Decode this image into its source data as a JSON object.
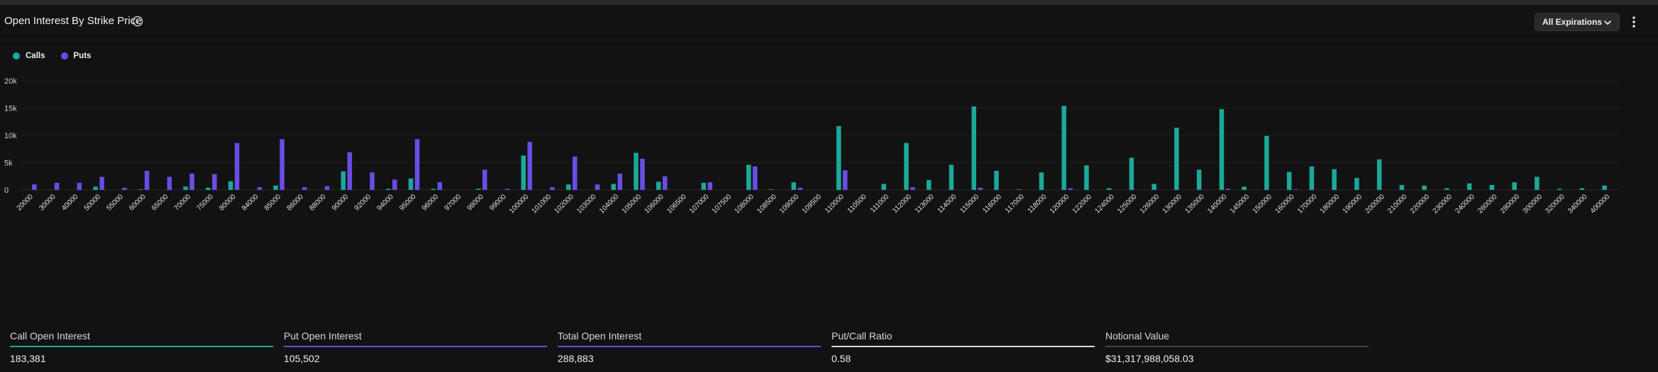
{
  "header": {
    "title": "Open Interest By Strike Price",
    "expirations_label": "All Expirations",
    "info_icon": "info-icon",
    "chevron_icon": "chevron-down-icon",
    "menu_icon": "kebab-menu-icon"
  },
  "legend": [
    {
      "name": "Calls",
      "color": "#1aa99a"
    },
    {
      "name": "Puts",
      "color": "#6a4de6"
    }
  ],
  "chart_data": {
    "type": "bar",
    "title": "Open Interest By Strike Price",
    "ylim": [
      0,
      20000
    ],
    "yticks": [
      0,
      5000,
      10000,
      15000,
      20000
    ],
    "ytick_labels": [
      "0",
      "5k",
      "10k",
      "15k",
      "20k"
    ],
    "legend_position": "top-left",
    "grid": true,
    "categories": [
      "20000",
      "30000",
      "40000",
      "50000",
      "55000",
      "60000",
      "65000",
      "70000",
      "75000",
      "80000",
      "84000",
      "85000",
      "86000",
      "88000",
      "90000",
      "92000",
      "94000",
      "95000",
      "96000",
      "97000",
      "98000",
      "99000",
      "100000",
      "101000",
      "102000",
      "103000",
      "104000",
      "105000",
      "106000",
      "106500",
      "107000",
      "107500",
      "108000",
      "108500",
      "109000",
      "109500",
      "110000",
      "110500",
      "111000",
      "112000",
      "113000",
      "114000",
      "115000",
      "116000",
      "117000",
      "118000",
      "120000",
      "122000",
      "124000",
      "125000",
      "126000",
      "130000",
      "135000",
      "140000",
      "145000",
      "150000",
      "160000",
      "170000",
      "180000",
      "190000",
      "200000",
      "210000",
      "220000",
      "230000",
      "240000",
      "260000",
      "280000",
      "300000",
      "320000",
      "340000",
      "400000"
    ],
    "series": [
      {
        "name": "Calls",
        "color": "#1aa99a",
        "values": [
          0,
          0,
          0,
          600,
          0,
          100,
          0,
          600,
          400,
          1600,
          0,
          800,
          0,
          0,
          3400,
          0,
          200,
          2100,
          200,
          0,
          200,
          0,
          6300,
          0,
          1000,
          0,
          1100,
          6800,
          1500,
          0,
          1300,
          0,
          4600,
          100,
          1400,
          0,
          11700,
          0,
          1100,
          8600,
          1800,
          4600,
          15300,
          3500,
          100,
          3200,
          15400,
          4500,
          300,
          5900,
          1100,
          11400,
          3700,
          14800,
          600,
          9900,
          3300,
          4300,
          3800,
          2200,
          5600,
          900,
          800,
          300,
          1200,
          900,
          1400,
          2400,
          200,
          300,
          800
        ]
      },
      {
        "name": "Puts",
        "color": "#6a4de6",
        "values": [
          1000,
          1300,
          1300,
          2400,
          400,
          3500,
          2400,
          3000,
          2900,
          8600,
          500,
          9300,
          500,
          700,
          6900,
          3200,
          1900,
          9300,
          1400,
          0,
          3700,
          200,
          8800,
          500,
          6100,
          1000,
          3000,
          5700,
          2500,
          0,
          1400,
          0,
          4300,
          0,
          400,
          0,
          3600,
          0,
          0,
          500,
          0,
          0,
          400,
          0,
          0,
          0,
          300,
          0,
          0,
          0,
          0,
          0,
          0,
          200,
          0,
          0,
          100,
          0,
          0,
          0,
          0,
          0,
          0,
          0,
          0,
          0,
          0,
          0,
          0,
          0,
          0
        ]
      }
    ]
  },
  "stats": [
    {
      "label": "Call Open Interest",
      "value": "183,381",
      "color": "#1aa99a"
    },
    {
      "label": "Put Open Interest",
      "value": "105,502",
      "color": "#6a4de6"
    },
    {
      "label": "Total Open Interest",
      "value": "288,883",
      "color": "#6a4de6"
    },
    {
      "label": "Put/Call Ratio",
      "value": "0.58",
      "color": "#d9d9d9"
    },
    {
      "label": "Notional Value",
      "value": "$31,317,988,058.03",
      "color": "#444444"
    }
  ]
}
